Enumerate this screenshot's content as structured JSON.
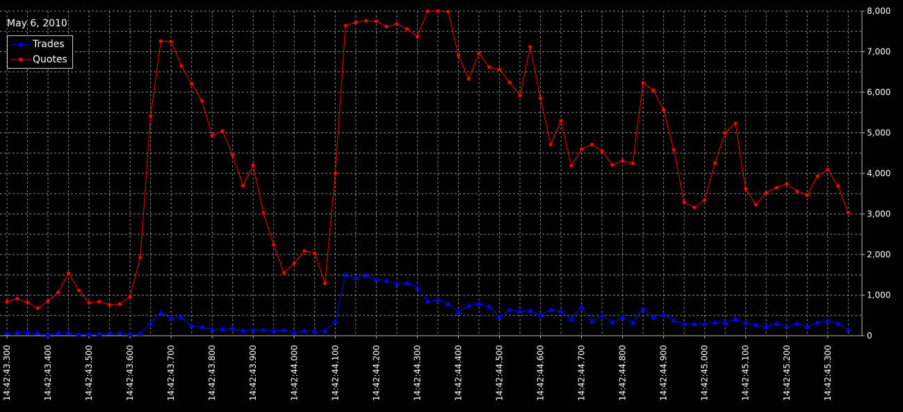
{
  "chart_data": {
    "type": "line",
    "title": "May 6, 2010",
    "ylim": [
      0,
      8000
    ],
    "y_ticks": [
      "0",
      "1,000",
      "2,000",
      "3,000",
      "4,000",
      "5,000",
      "6,000",
      "7,000",
      "8,000"
    ],
    "y_tick_values": [
      0,
      1000,
      2000,
      3000,
      4000,
      5000,
      6000,
      7000,
      8000
    ],
    "x_tick_labels": [
      "14:42:43.300",
      "14:42:43.400",
      "14:42:43.500",
      "14:42:43.600",
      "14:42:43.700",
      "14:42:43.800",
      "14:42:43.900",
      "14:42:44.000",
      "14:42:44.100",
      "14:42:44.200",
      "14:42:44.300",
      "14:42:44.400",
      "14:42:44.500",
      "14:42:44.600",
      "14:42:44.700",
      "14:42:44.800",
      "14:42:44.900",
      "14:42:45.000",
      "14:42:45.100",
      "14:42:45.200",
      "14:42:45.300"
    ],
    "x_step_ms": 25,
    "grid": true,
    "legend_position": "top-left",
    "series": [
      {
        "name": "Trades",
        "color": "#0000ff",
        "marker": "triangle",
        "values": [
          60,
          80,
          70,
          60,
          20,
          70,
          70,
          30,
          40,
          40,
          60,
          60,
          40,
          50,
          300,
          560,
          430,
          450,
          240,
          220,
          150,
          160,
          180,
          120,
          150,
          140,
          120,
          140,
          80,
          120,
          100,
          110,
          350,
          1500,
          1420,
          1480,
          1380,
          1360,
          1280,
          1300,
          1180,
          850,
          880,
          780,
          580,
          740,
          790,
          720,
          460,
          640,
          600,
          620,
          510,
          640,
          600,
          410,
          700,
          360,
          500,
          330,
          450,
          320,
          660,
          450,
          520,
          380,
          290,
          290,
          290,
          330,
          320,
          410,
          320,
          260,
          220,
          300,
          230,
          300,
          220,
          330,
          370,
          300,
          150
        ]
      },
      {
        "name": "Quotes",
        "color": "#ff0000",
        "marker": "circle",
        "values": [
          840,
          910,
          820,
          680,
          850,
          1070,
          1540,
          1120,
          810,
          840,
          760,
          780,
          960,
          1930,
          5410,
          7260,
          7250,
          6650,
          6210,
          5790,
          4930,
          5050,
          4450,
          3700,
          4200,
          3020,
          2240,
          1550,
          1780,
          2090,
          2030,
          1290,
          4000,
          7640,
          7720,
          7760,
          7750,
          7620,
          7680,
          7560,
          7370,
          8000,
          8000,
          7990,
          6910,
          6330,
          6960,
          6620,
          6560,
          6240,
          5920,
          7120,
          5850,
          4710,
          5300,
          4190,
          4600,
          4710,
          4550,
          4210,
          4310,
          4250,
          6230,
          6050,
          5560,
          4580,
          3290,
          3160,
          3340,
          4250,
          5000,
          5230,
          3620,
          3230,
          3520,
          3650,
          3740,
          3560,
          3460,
          3930,
          4090,
          3690,
          3030
        ]
      }
    ]
  }
}
